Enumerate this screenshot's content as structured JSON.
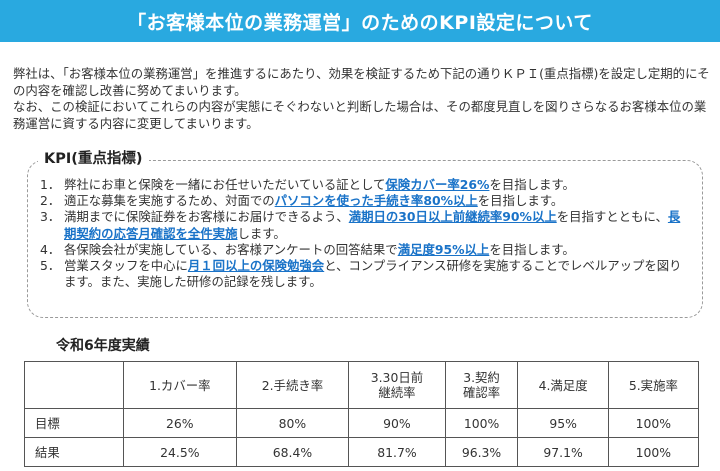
{
  "title": "「お客様本位の業務運営」のためのKPI設定について",
  "intro": {
    "paragraph1": "弊社は、「お客様本位の業務運営」を推進するにあたり、効果を検証するため下記の通りＫＰＩ(重点指標)を設定し定期的にその内容を確認し改善に努めてまいります。",
    "paragraph2": "なお、この検証においてこれらの内容が実態にそぐわないと判断した場合は、その都度見直しを図りさらなるお客様本位の業務運営に資する内容に変更してまいります。"
  },
  "kpi": {
    "heading": "KPI(重点指標)",
    "items": [
      {
        "num": "1．",
        "pre": "弊社にお車と保険を一緒にお任せいただいている証として",
        "hl1": "保険カバー率26%",
        "mid": "",
        "hl2": "",
        "post": "を目指します。"
      },
      {
        "num": "2．",
        "pre": "適正な募集を実施するため、対面での",
        "hl1": "パソコンを使った手続き率80%以上",
        "mid": "",
        "hl2": "",
        "post": "を目指します。"
      },
      {
        "num": "3．",
        "pre": "満期までに保険証券をお客様にお届けできるよう、",
        "hl1": "満期日の30日以上前継続率90%以上",
        "mid": "を目指すとともに、",
        "hl2": "長期契約の応答月確認を全件実施",
        "post": "します。"
      },
      {
        "num": "4．",
        "pre": "各保険会社が実施している、お客様アンケートの回答結果で",
        "hl1": "満足度95%以上",
        "mid": "",
        "hl2": "",
        "post": "を目指します。"
      },
      {
        "num": "5．",
        "pre": "営業スタッフを中心に",
        "hl1": "月１回以上の保険勉強会",
        "mid": "",
        "hl2": "",
        "post": "と、コンプライアンス研修を実施することでレベルアップを図ります。また、実施した研修の記録を残します。"
      }
    ]
  },
  "results": {
    "title": "令和6年度実績",
    "columns": [
      "1.カバー率",
      "2.手続き率",
      "3.30日前\n継続率",
      "3.契約\n確認率",
      "4.満足度",
      "5.実施率"
    ],
    "rows": [
      {
        "label": "目標",
        "values": [
          "26%",
          "80%",
          "90%",
          "100%",
          "95%",
          "100%"
        ]
      },
      {
        "label": "結果",
        "values": [
          "24.5%",
          "68.4%",
          "81.7%",
          "96.3%",
          "97.1%",
          "100%"
        ]
      }
    ]
  }
}
